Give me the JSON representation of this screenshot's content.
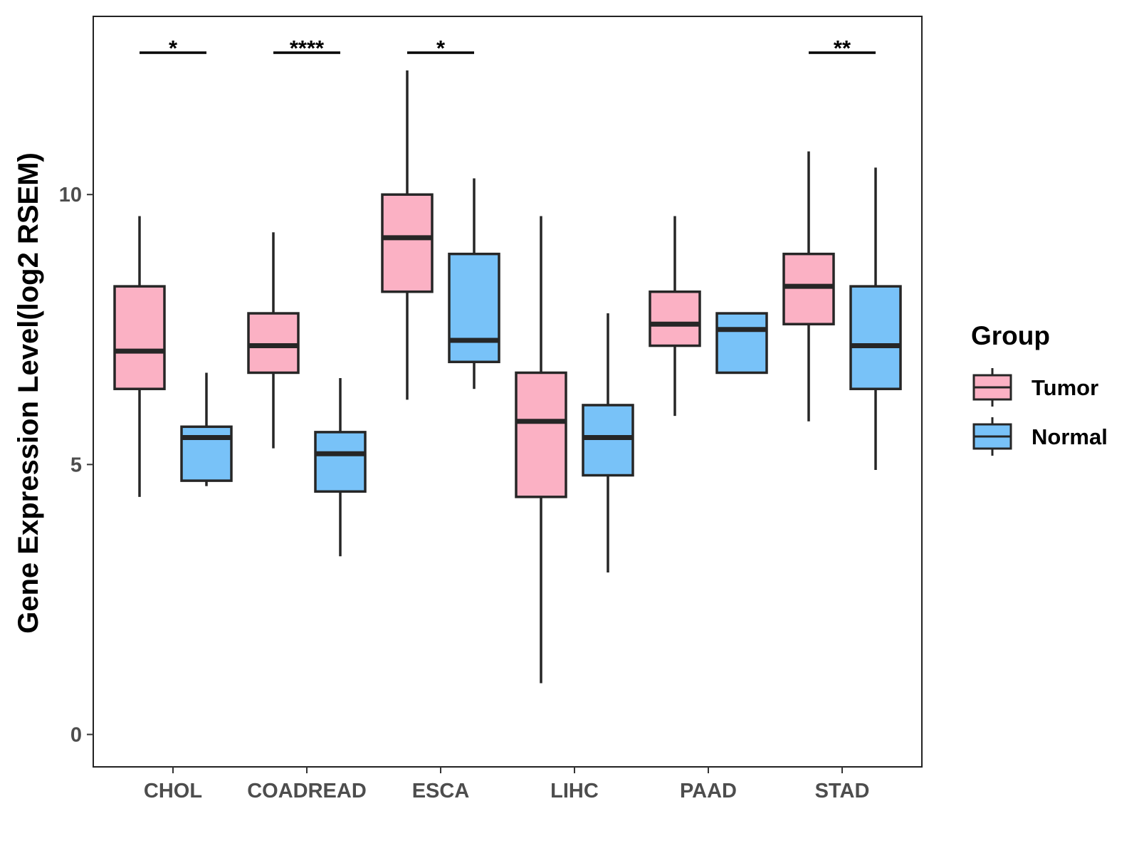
{
  "chart_data": {
    "type": "boxplot",
    "title": "",
    "xlabel": "",
    "ylabel": "Gene Expression Level(log2 RSEM)",
    "ylim": [
      -0.6,
      13.3
    ],
    "yticks": [
      0,
      5,
      10
    ],
    "ytick_labels": [
      "0",
      "5",
      "10"
    ],
    "grid": false,
    "categories": [
      "CHOL",
      "COADREAD",
      "ESCA",
      "LIHC",
      "PAAD",
      "STAD"
    ],
    "legend": {
      "title": "Group",
      "placement": "right",
      "entries": [
        {
          "name": "Tumor",
          "color": "#FBB1C4"
        },
        {
          "name": "Normal",
          "color": "#78C2F8"
        }
      ]
    },
    "series": [
      {
        "name": "Tumor",
        "color": "#FBB1C4",
        "boxes": [
          {
            "category": "CHOL",
            "whisker_low": 4.4,
            "q1": 6.4,
            "median": 7.1,
            "q3": 8.3,
            "whisker_high": 9.6
          },
          {
            "category": "COADREAD",
            "whisker_low": 5.3,
            "q1": 6.7,
            "median": 7.2,
            "q3": 7.8,
            "whisker_high": 9.3
          },
          {
            "category": "ESCA",
            "whisker_low": 6.2,
            "q1": 8.2,
            "median": 9.2,
            "q3": 10.0,
            "whisker_high": 12.3
          },
          {
            "category": "LIHC",
            "whisker_low": 0.95,
            "q1": 4.4,
            "median": 5.8,
            "q3": 6.7,
            "whisker_high": 9.6
          },
          {
            "category": "PAAD",
            "whisker_low": 5.9,
            "q1": 7.2,
            "median": 7.6,
            "q3": 8.2,
            "whisker_high": 9.6
          },
          {
            "category": "STAD",
            "whisker_low": 5.8,
            "q1": 7.6,
            "median": 8.3,
            "q3": 8.9,
            "whisker_high": 10.8
          }
        ]
      },
      {
        "name": "Normal",
        "color": "#78C2F8",
        "boxes": [
          {
            "category": "CHOL",
            "whisker_low": 4.6,
            "q1": 4.7,
            "median": 5.5,
            "q3": 5.7,
            "whisker_high": 6.7
          },
          {
            "category": "COADREAD",
            "whisker_low": 3.3,
            "q1": 4.5,
            "median": 5.2,
            "q3": 5.6,
            "whisker_high": 6.6
          },
          {
            "category": "ESCA",
            "whisker_low": 6.4,
            "q1": 6.9,
            "median": 7.3,
            "q3": 8.9,
            "whisker_high": 10.3
          },
          {
            "category": "LIHC",
            "whisker_low": 3.0,
            "q1": 4.8,
            "median": 5.5,
            "q3": 6.1,
            "whisker_high": 7.8
          },
          {
            "category": "PAAD",
            "whisker_low": 6.7,
            "q1": 6.7,
            "median": 7.5,
            "q3": 7.8,
            "whisker_high": 7.8
          },
          {
            "category": "STAD",
            "whisker_low": 4.9,
            "q1": 6.4,
            "median": 7.2,
            "q3": 8.3,
            "whisker_high": 10.5
          }
        ]
      }
    ],
    "significance": [
      {
        "category": "CHOL",
        "label": "*"
      },
      {
        "category": "COADREAD",
        "label": "****"
      },
      {
        "category": "ESCA",
        "label": "*"
      },
      {
        "category": "STAD",
        "label": "**"
      }
    ]
  }
}
